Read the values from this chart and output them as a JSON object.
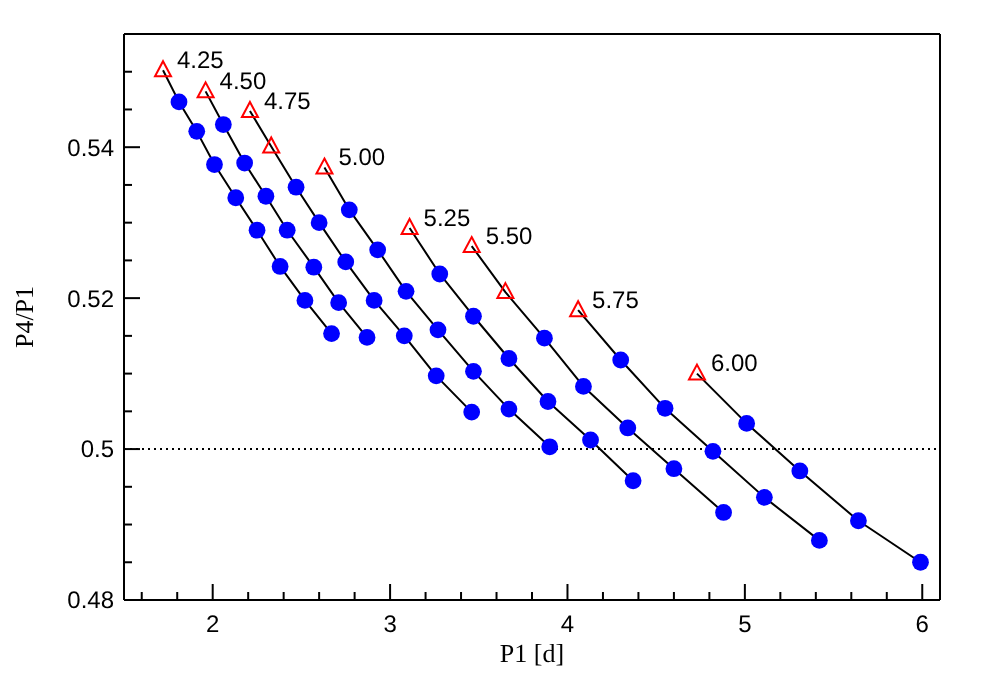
{
  "chart_data": {
    "type": "line",
    "xlabel": "P1 [d]",
    "ylabel": "P4/P1",
    "xlim": [
      1.5,
      6.1
    ],
    "ylim": [
      0.48,
      0.555
    ],
    "xticks": [
      {
        "value": 1.6,
        "label": null
      },
      {
        "value": 1.8,
        "label": null
      },
      2,
      {
        "value": 2.2,
        "label": null
      },
      {
        "value": 2.4,
        "label": null
      },
      {
        "value": 2.6,
        "label": null
      },
      {
        "value": 2.8,
        "label": null
      },
      3,
      {
        "value": 3.2,
        "label": null
      },
      {
        "value": 3.4,
        "label": null
      },
      {
        "value": 3.6,
        "label": null
      },
      {
        "value": 3.8,
        "label": null
      },
      4,
      {
        "value": 4.2,
        "label": null
      },
      {
        "value": 4.4,
        "label": null
      },
      {
        "value": 4.6,
        "label": null
      },
      {
        "value": 4.8,
        "label": null
      },
      5,
      {
        "value": 5.2,
        "label": null
      },
      {
        "value": 5.4,
        "label": null
      },
      {
        "value": 5.6,
        "label": null
      },
      {
        "value": 5.8,
        "label": null
      },
      6
    ],
    "yticks": [
      0.48,
      {
        "value": 0.485,
        "label": null
      },
      {
        "value": 0.49,
        "label": null
      },
      {
        "value": 0.495,
        "label": null
      },
      0.5,
      {
        "value": 0.505,
        "label": null
      },
      {
        "value": 0.51,
        "label": null
      },
      {
        "value": 0.515,
        "label": null
      },
      0.52,
      {
        "value": 0.525,
        "label": null
      },
      {
        "value": 0.53,
        "label": null
      },
      {
        "value": 0.535,
        "label": null
      },
      0.54,
      {
        "value": 0.545,
        "label": null
      },
      {
        "value": 0.55,
        "label": null
      }
    ],
    "ref_lines": [
      {
        "axis": "y",
        "value": 0.5,
        "color": "#000000",
        "line_style": "dotted"
      }
    ],
    "series": [
      {
        "name": "4.25",
        "color": "#000000",
        "marker": "none",
        "x": [
          1.72,
          1.81,
          1.91,
          2.01,
          2.13,
          2.25,
          2.38,
          2.52,
          2.67
        ],
        "values": [
          0.5502,
          0.546,
          0.5421,
          0.5377,
          0.5333,
          0.529,
          0.5242,
          0.5197,
          0.5153
        ]
      },
      {
        "name": "4.50",
        "color": "#000000",
        "marker": "none",
        "x": [
          1.96,
          2.06,
          2.18,
          2.3,
          2.42,
          2.57,
          2.71,
          2.87
        ],
        "values": [
          0.5474,
          0.543,
          0.5379,
          0.5335,
          0.529,
          0.5241,
          0.5194,
          0.5148
        ]
      },
      {
        "name": "4.75",
        "color": "#000000",
        "marker": "none",
        "x": [
          2.21,
          2.33,
          2.47,
          2.6,
          2.75,
          2.91,
          3.08,
          3.26,
          3.46
        ],
        "values": [
          0.5448,
          0.5401,
          0.5347,
          0.53,
          0.5248,
          0.5197,
          0.515,
          0.5097,
          0.5049
        ]
      },
      {
        "name": "5.00",
        "color": "#000000",
        "marker": "none",
        "x": [
          2.63,
          2.77,
          2.93,
          3.09,
          3.27,
          3.47,
          3.67,
          3.9
        ],
        "values": [
          0.5373,
          0.5317,
          0.5264,
          0.5209,
          0.5158,
          0.5103,
          0.5053,
          0.5003
        ]
      },
      {
        "name": "5.25",
        "color": "#000000",
        "marker": "none",
        "x": [
          3.11,
          3.28,
          3.47,
          3.67,
          3.89,
          4.13,
          4.37
        ],
        "values": [
          0.5293,
          0.5232,
          0.5176,
          0.512,
          0.5063,
          0.5012,
          0.4958
        ]
      },
      {
        "name": "5.50",
        "color": "#000000",
        "marker": "none",
        "x": [
          3.46,
          3.65,
          3.87,
          4.09,
          4.34,
          4.6,
          4.88
        ],
        "values": [
          0.5269,
          0.5208,
          0.5147,
          0.5083,
          0.5028,
          0.4974,
          0.4916
        ]
      },
      {
        "name": "5.75",
        "color": "#000000",
        "marker": "none",
        "x": [
          4.06,
          4.3,
          4.55,
          4.82,
          5.11,
          5.42
        ],
        "values": [
          0.5184,
          0.5118,
          0.5054,
          0.4997,
          0.4936,
          0.4879
        ]
      },
      {
        "name": "6.00",
        "color": "#000000",
        "marker": "none",
        "x": [
          4.73,
          5.01,
          5.31,
          5.64,
          5.99
        ],
        "values": [
          0.51,
          0.5034,
          0.4971,
          0.4905,
          0.485
        ]
      },
      {
        "type": "scatter",
        "color": "#0000ff",
        "marker": "circle",
        "x": [
          1.81,
          1.91,
          2.01,
          2.13,
          2.25,
          2.38,
          2.52,
          2.67,
          2.06,
          2.18,
          2.3,
          2.42,
          2.57,
          2.71,
          2.87,
          2.47,
          2.6,
          2.75,
          2.91,
          3.08,
          3.26,
          3.46,
          2.77,
          2.93,
          3.09,
          3.27,
          3.47,
          3.67,
          3.9,
          3.28,
          3.47,
          3.67,
          3.89,
          4.13,
          4.37,
          3.87,
          4.09,
          4.34,
          4.6,
          4.88,
          4.3,
          4.55,
          4.82,
          5.11,
          5.42,
          5.01,
          5.31,
          5.64,
          5.99
        ],
        "values": [
          0.546,
          0.5421,
          0.5377,
          0.5333,
          0.529,
          0.5242,
          0.5197,
          0.5153,
          0.543,
          0.5379,
          0.5335,
          0.529,
          0.5241,
          0.5194,
          0.5148,
          0.5347,
          0.53,
          0.5248,
          0.5197,
          0.515,
          0.5097,
          0.5049,
          0.5317,
          0.5264,
          0.5209,
          0.5158,
          0.5103,
          0.5053,
          0.5003,
          0.5232,
          0.5176,
          0.512,
          0.5063,
          0.5012,
          0.4958,
          0.5147,
          0.5083,
          0.5028,
          0.4974,
          0.4916,
          0.5118,
          0.5054,
          0.4997,
          0.4936,
          0.4879,
          0.5034,
          0.4971,
          0.4905,
          0.485
        ]
      },
      {
        "type": "scatter",
        "color": "#ff0000",
        "marker": "triangle",
        "x": [
          1.72,
          1.96,
          2.21,
          2.33,
          2.63,
          3.11,
          3.46,
          3.65,
          4.06,
          4.73
        ],
        "values": [
          0.5502,
          0.5474,
          0.5448,
          0.5401,
          0.5373,
          0.5293,
          0.5269,
          0.5208,
          0.5184,
          0.51
        ]
      }
    ]
  }
}
